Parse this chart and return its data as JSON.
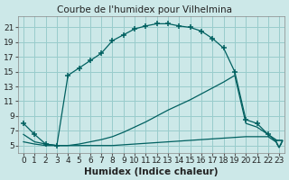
{
  "title": "",
  "xlabel": "Humidex (Indice chaleur)",
  "bg_color": "#cce8e8",
  "grid_color": "#99cccc",
  "line_color": "#006060",
  "xlim": [
    -0.5,
    23.5
  ],
  "ylim": [
    4.0,
    22.5
  ],
  "xticks": [
    0,
    1,
    2,
    3,
    4,
    5,
    6,
    7,
    8,
    9,
    10,
    11,
    12,
    13,
    14,
    15,
    16,
    17,
    18,
    19,
    20,
    21,
    22,
    23
  ],
  "yticks": [
    5,
    7,
    9,
    11,
    13,
    15,
    17,
    19,
    21
  ],
  "curve1_x": [
    0,
    1,
    2,
    3,
    4,
    5,
    6,
    7,
    8,
    9,
    10,
    11,
    12,
    13,
    14,
    15,
    16,
    17,
    18,
    19,
    20,
    21,
    22,
    23
  ],
  "curve1_y": [
    8.0,
    6.5,
    5.2,
    5.0,
    14.5,
    15.5,
    16.5,
    17.5,
    19.2,
    20.0,
    20.8,
    21.2,
    21.5,
    21.5,
    21.2,
    21.0,
    20.5,
    19.5,
    18.2,
    15.0,
    8.5,
    8.0,
    6.5,
    5.2
  ],
  "curve2_x": [
    0,
    1,
    2,
    3,
    4,
    5,
    6,
    7,
    8,
    9,
    10,
    11,
    12,
    13,
    14,
    15,
    16,
    17,
    18,
    19,
    20,
    21,
    22,
    23
  ],
  "curve2_y": [
    6.5,
    5.5,
    5.2,
    5.0,
    5.0,
    5.2,
    5.5,
    5.8,
    6.2,
    6.8,
    7.5,
    8.2,
    9.0,
    9.8,
    10.5,
    11.2,
    12.0,
    12.8,
    13.6,
    14.5,
    8.0,
    7.5,
    6.5,
    5.5
  ],
  "curve3_x": [
    0,
    1,
    2,
    3,
    4,
    5,
    6,
    7,
    8,
    9,
    10,
    11,
    12,
    13,
    14,
    15,
    16,
    17,
    18,
    19,
    20,
    21,
    22,
    23
  ],
  "curve3_y": [
    5.5,
    5.2,
    5.0,
    5.0,
    5.0,
    5.0,
    5.0,
    5.0,
    5.0,
    5.1,
    5.2,
    5.3,
    5.4,
    5.5,
    5.6,
    5.7,
    5.8,
    5.9,
    6.0,
    6.1,
    6.2,
    6.2,
    6.2,
    5.2
  ],
  "title_text": "Courbe de l'humidex pour Vilhelmina",
  "title_fontsize": 7.5,
  "tick_fontsize": 6.5,
  "xlabel_fontsize": 7.5
}
